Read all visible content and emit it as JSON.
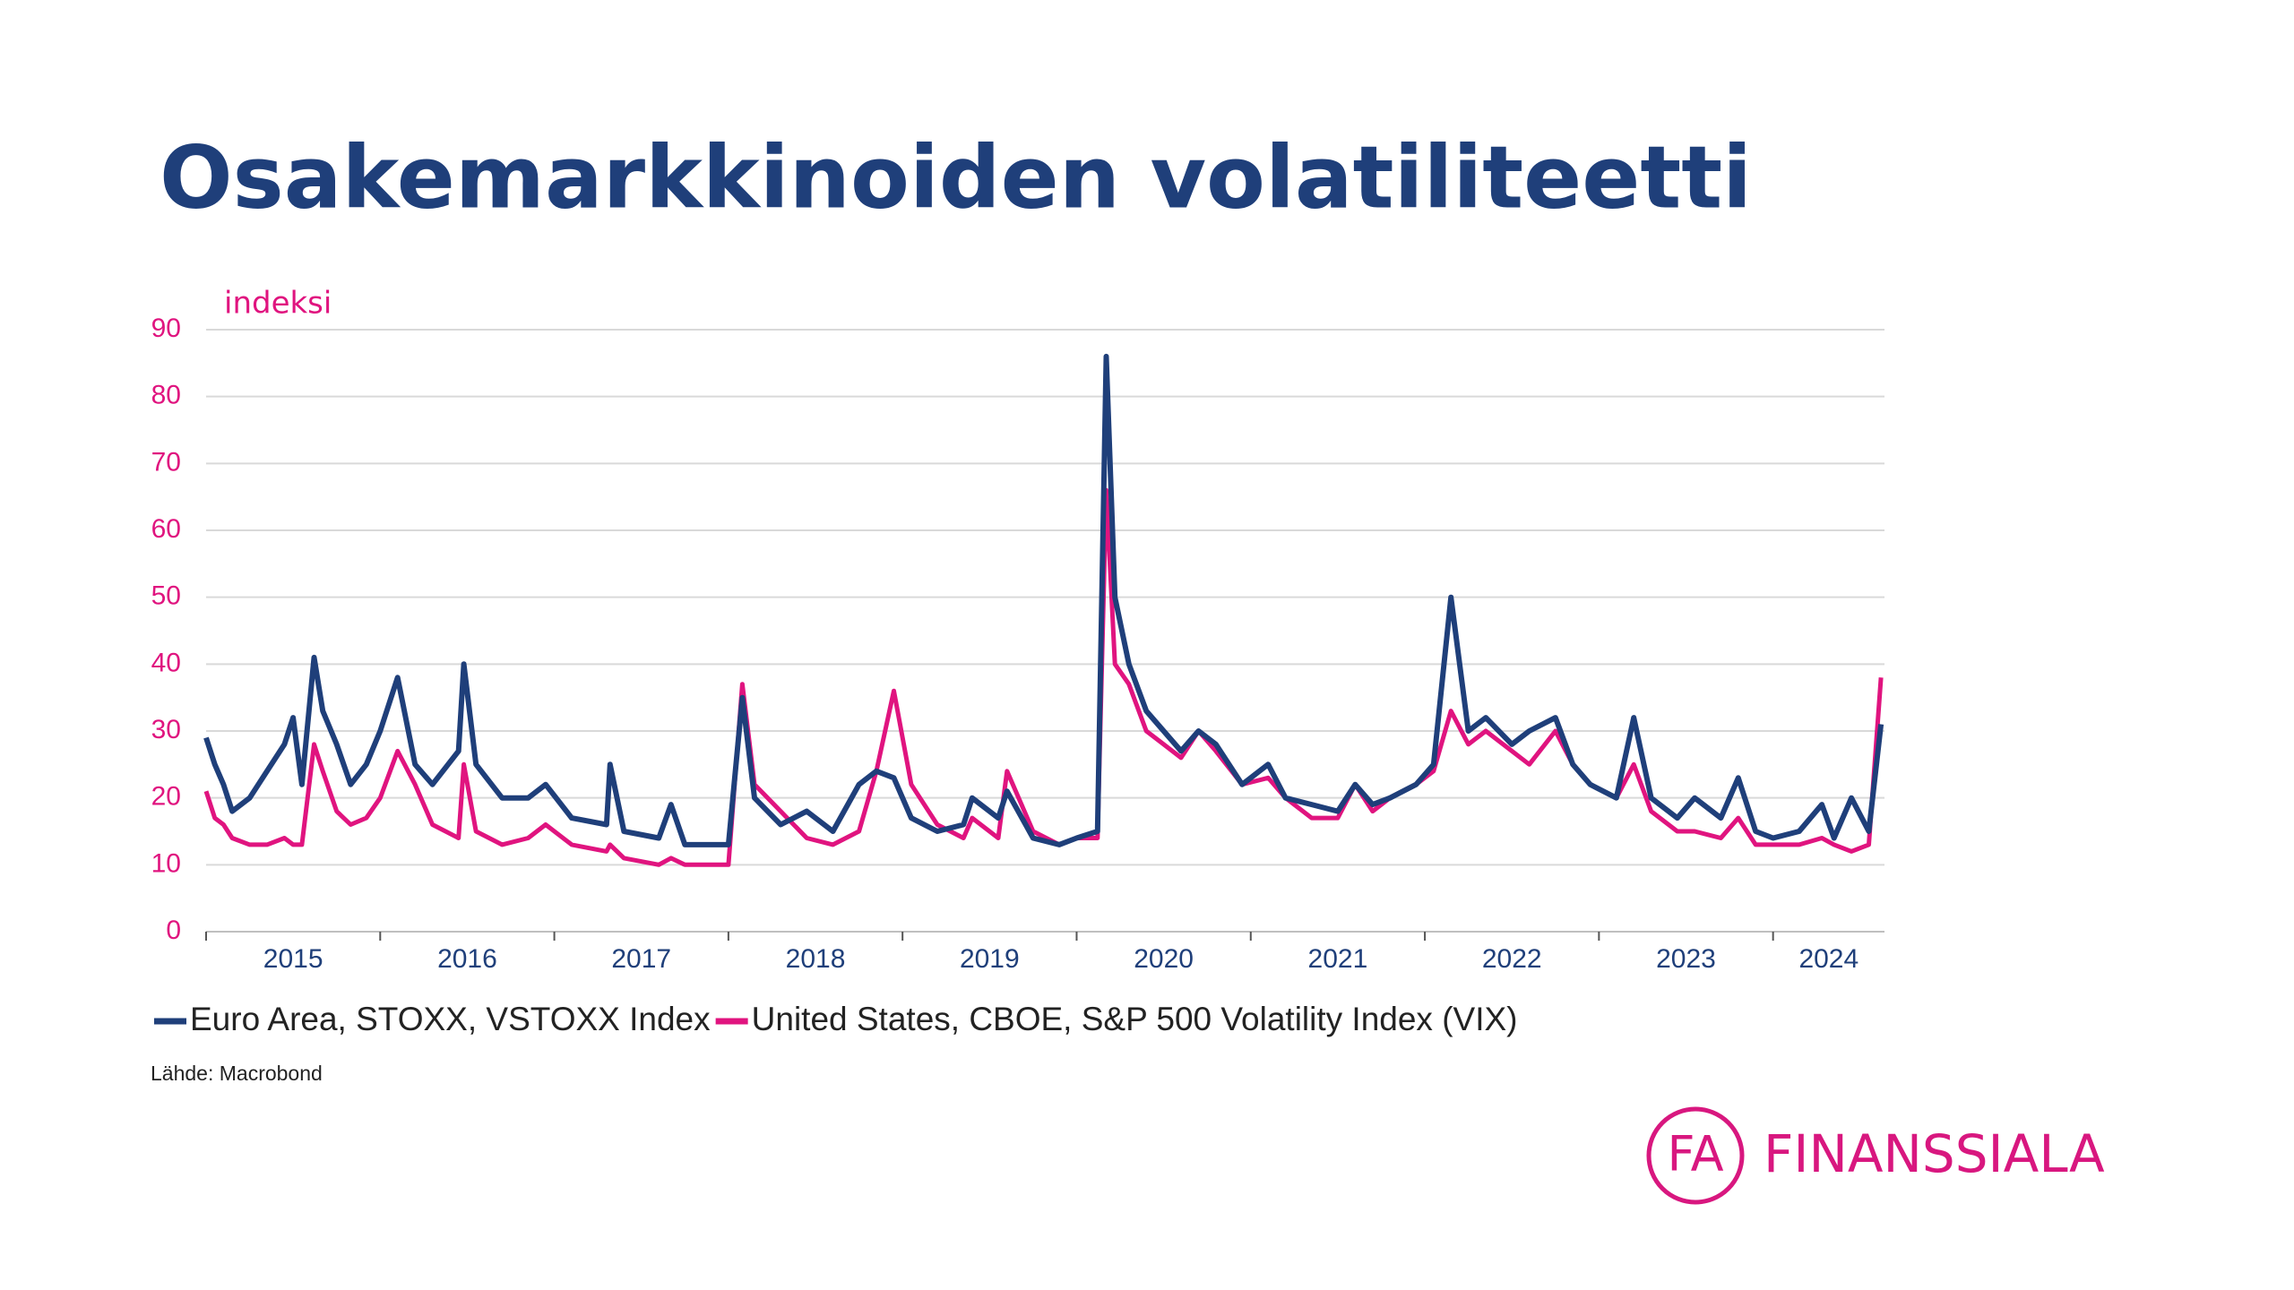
{
  "chart_data": {
    "type": "line",
    "title": "Osakemarkkinoiden volatiliteetti",
    "y_label": "indeksi",
    "source": "Lähde: Macrobond",
    "x": [
      2015.0,
      2015.05,
      2015.1,
      2015.15,
      2015.25,
      2015.35,
      2015.45,
      2015.5,
      2015.55,
      2015.62,
      2015.67,
      2015.75,
      2015.83,
      2015.92,
      2016.0,
      2016.1,
      2016.2,
      2016.3,
      2016.45,
      2016.48,
      2016.55,
      2016.7,
      2016.85,
      2016.95,
      2017.1,
      2017.3,
      2017.32,
      2017.4,
      2017.6,
      2017.67,
      2017.75,
      2017.9,
      2018.0,
      2018.08,
      2018.15,
      2018.3,
      2018.45,
      2018.6,
      2018.75,
      2018.85,
      2018.95,
      2019.05,
      2019.2,
      2019.35,
      2019.4,
      2019.55,
      2019.6,
      2019.75,
      2019.9,
      2020.0,
      2020.12,
      2020.17,
      2020.22,
      2020.3,
      2020.4,
      2020.5,
      2020.6,
      2020.7,
      2020.8,
      2020.95,
      2021.1,
      2021.2,
      2021.35,
      2021.5,
      2021.6,
      2021.7,
      2021.8,
      2021.95,
      2022.05,
      2022.15,
      2022.25,
      2022.35,
      2022.5,
      2022.6,
      2022.75,
      2022.85,
      2022.95,
      2023.1,
      2023.2,
      2023.3,
      2023.45,
      2023.55,
      2023.7,
      2023.8,
      2023.9,
      2024.0,
      2024.15,
      2024.28,
      2024.35,
      2024.45,
      2024.55,
      2024.62
    ],
    "series": [
      {
        "name": "United States, CBOE, S&P 500 Volatility Index (VIX)",
        "color": "#e0147f",
        "values": [
          21,
          17,
          16,
          14,
          13,
          13,
          14,
          13,
          13,
          28,
          24,
          18,
          16,
          17,
          20,
          27,
          22,
          16,
          14,
          25,
          15,
          13,
          14,
          16,
          13,
          12,
          13,
          11,
          10,
          11,
          10,
          10,
          10,
          37,
          22,
          18,
          14,
          13,
          15,
          24,
          36,
          22,
          16,
          14,
          17,
          14,
          24,
          15,
          13,
          14,
          14,
          66,
          40,
          37,
          30,
          28,
          26,
          30,
          27,
          22,
          23,
          20,
          17,
          17,
          22,
          18,
          20,
          22,
          24,
          33,
          28,
          30,
          27,
          25,
          30,
          25,
          22,
          20,
          25,
          18,
          15,
          15,
          14,
          17,
          13,
          13,
          13,
          14,
          13,
          12,
          13,
          38
        ]
      },
      {
        "name": "Euro Area, STOXX, VSTOXX Index",
        "color": "#1f3f7a",
        "values": [
          29,
          25,
          22,
          18,
          20,
          24,
          28,
          32,
          22,
          41,
          33,
          28,
          22,
          25,
          30,
          38,
          25,
          22,
          27,
          40,
          25,
          20,
          20,
          22,
          17,
          16,
          25,
          15,
          14,
          19,
          13,
          13,
          13,
          35,
          20,
          16,
          18,
          15,
          22,
          24,
          23,
          17,
          15,
          16,
          20,
          17,
          21,
          14,
          13,
          14,
          15,
          86,
          50,
          40,
          33,
          30,
          27,
          30,
          28,
          22,
          25,
          20,
          19,
          18,
          22,
          19,
          20,
          22,
          25,
          50,
          30,
          32,
          28,
          30,
          32,
          25,
          22,
          20,
          32,
          20,
          17,
          20,
          17,
          23,
          15,
          14,
          15,
          19,
          14,
          20,
          15,
          31
        ]
      }
    ],
    "legend_order": [
      1,
      0
    ],
    "xlim": [
      2015.0,
      2024.64
    ],
    "xticks": [
      2015,
      2016,
      2017,
      2018,
      2019,
      2020,
      2021,
      2022,
      2023,
      2024
    ],
    "ylim": [
      0,
      90
    ],
    "yticks": [
      0,
      10,
      20,
      30,
      40,
      50,
      60,
      70,
      80,
      90
    ],
    "grid": true
  },
  "logo": {
    "mark": "FA",
    "name": "FINANSSIALA"
  }
}
